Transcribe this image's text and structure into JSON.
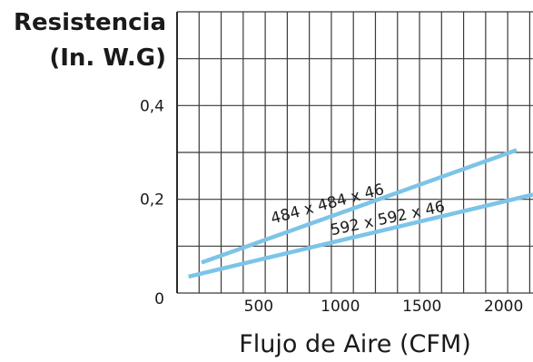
{
  "chart_data": {
    "type": "line",
    "title": "",
    "ylabel": [
      "Resistencia",
      "(In. W.G)"
    ],
    "xlabel": "Flujo de Aire (CFM)",
    "xlim": [
      0,
      2180
    ],
    "ylim": [
      0,
      0.6
    ],
    "x_ticks": [
      {
        "value": 500,
        "label": "500"
      },
      {
        "value": 1000,
        "label": "1000"
      },
      {
        "value": 1500,
        "label": "1500"
      },
      {
        "value": 2000,
        "label": "2000"
      }
    ],
    "y_ticks": [
      {
        "value": 0,
        "label": "0"
      },
      {
        "value": 0.2,
        "label": "0,2"
      },
      {
        "value": 0.4,
        "label": "0,4"
      }
    ],
    "grid": true,
    "grid_x_step": 135,
    "grid_y_step": 0.1,
    "series": [
      {
        "name": "484 x 484 x 46",
        "color": "#7cc4e8",
        "x": [
          150,
          2080
        ],
        "y": [
          0.065,
          0.305
        ]
      },
      {
        "name": "592 x 592 x 46",
        "color": "#7cc4e8",
        "x": [
          70,
          2180
        ],
        "y": [
          0.035,
          0.21
        ]
      }
    ]
  }
}
